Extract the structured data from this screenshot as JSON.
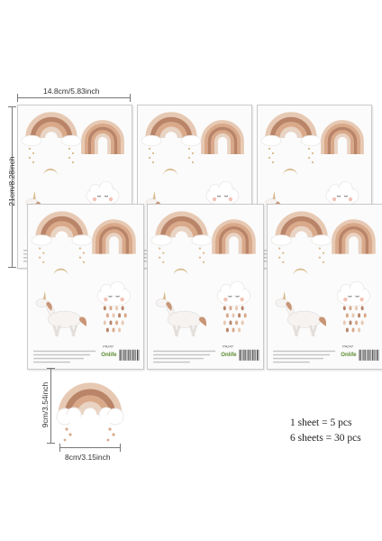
{
  "dimensions": {
    "sheet_width": "14.8cm/5.83inch",
    "sheet_height": "21cm/8.28inch",
    "sticker_width": "8cm/3.15inch",
    "sticker_height": "9cm/3.54inch"
  },
  "quantity": {
    "line1": "1 sheet = 5 pcs",
    "line2": "6 sheets = 30 pcs"
  },
  "sheet": {
    "brand": "Onlife",
    "code": "PA247",
    "sticker_count": 5,
    "sheet_count": 6
  },
  "colors": {
    "arc_outer": "#e7c9b3",
    "arc_2": "#b98468",
    "arc_3": "#d9a98a",
    "arc_inner": "#e9d3c3",
    "cloud": "#ffffff",
    "cloud_shadow": "#ece8e6",
    "accent_gold": "#d9b88c",
    "cheek": "#f2c2b4",
    "unicorn_mane": "#c99575",
    "brand_green": "#5a8a2e"
  }
}
